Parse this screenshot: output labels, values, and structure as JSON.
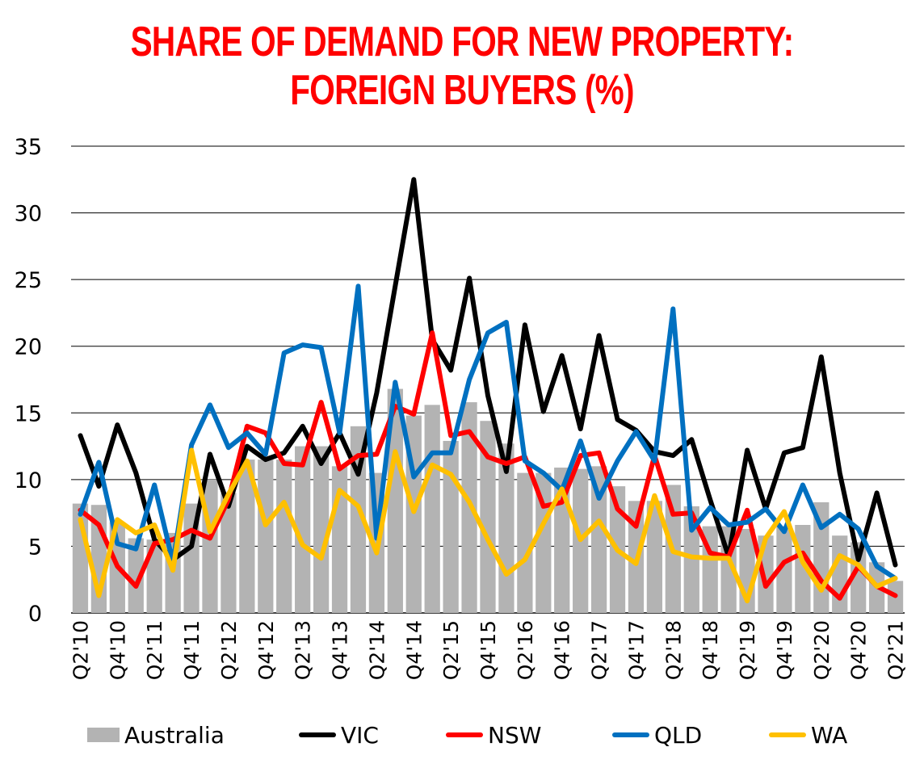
{
  "title_lines": [
    "SHARE OF DEMAND FOR NEW PROPERTY:",
    "FOREIGN BUYERS (%)"
  ],
  "colors": {
    "title": "#ff0000",
    "australia": "#b3b3b3",
    "vic": "#000000",
    "nsw": "#ff0000",
    "qld": "#0070c0",
    "wa": "#ffc000"
  },
  "legend": [
    {
      "name": "Australia",
      "kind": "bar",
      "color": "#b3b3b3"
    },
    {
      "name": "VIC",
      "kind": "line",
      "color": "#000000"
    },
    {
      "name": "NSW",
      "kind": "line",
      "color": "#ff0000"
    },
    {
      "name": "QLD",
      "kind": "line",
      "color": "#0070c0"
    },
    {
      "name": "WA",
      "kind": "line",
      "color": "#ffc000"
    }
  ],
  "chart_data": {
    "type": "bar+line",
    "title": "SHARE OF DEMAND FOR NEW PROPERTY: FOREIGN BUYERS (%)",
    "xlabel": "",
    "ylabel": "",
    "ylim": [
      0,
      35
    ],
    "yticks": [
      0,
      5,
      10,
      15,
      20,
      25,
      30,
      35
    ],
    "grid": true,
    "legend_position": "bottom",
    "categories": [
      "Q2'10",
      "Q3'10",
      "Q4'10",
      "Q1'11",
      "Q2'11",
      "Q3'11",
      "Q4'11",
      "Q1'12",
      "Q2'12",
      "Q3'12",
      "Q4'12",
      "Q1'13",
      "Q2'13",
      "Q3'13",
      "Q4'13",
      "Q1'14",
      "Q2'14",
      "Q3'14",
      "Q4'14",
      "Q1'15",
      "Q2'15",
      "Q3'15",
      "Q4'15",
      "Q1'16",
      "Q2'16",
      "Q3'16",
      "Q4'16",
      "Q1'17",
      "Q2'17",
      "Q3'17",
      "Q4'17",
      "Q1'18",
      "Q2'18",
      "Q3'18",
      "Q4'18",
      "Q1'19",
      "Q2'19",
      "Q3'19",
      "Q4'19",
      "Q1'20",
      "Q2'20",
      "Q3'20",
      "Q4'20",
      "Q1'21",
      "Q2'21"
    ],
    "tick_labels": [
      "Q2'10",
      "",
      "Q4'10",
      "",
      "Q2'11",
      "",
      "Q4'11",
      "",
      "Q2'12",
      "",
      "Q4'12",
      "",
      "Q2'13",
      "",
      "Q4'13",
      "",
      "Q2'14",
      "",
      "Q4'14",
      "",
      "Q2'15",
      "",
      "Q4'15",
      "",
      "Q2'16",
      "",
      "Q4'16",
      "",
      "Q2'17",
      "",
      "Q4'17",
      "",
      "Q2'18",
      "",
      "Q4'18",
      "",
      "Q2'19",
      "",
      "Q4'19",
      "",
      "Q2'20",
      "",
      "Q4'20",
      "",
      "Q2'21"
    ],
    "bars": {
      "name": "Australia",
      "values": [
        8.2,
        8.1,
        6.8,
        5.6,
        5.5,
        6.0,
        8.2,
        10.0,
        9.0,
        11.5,
        11.5,
        11.5,
        12.5,
        12.5,
        11.0,
        14.0,
        10.5,
        16.8,
        14.8,
        15.6,
        12.9,
        15.8,
        14.4,
        12.7,
        10.5,
        10.5,
        10.9,
        10.8,
        11.0,
        9.5,
        8.4,
        8.4,
        9.6,
        8.0,
        6.5,
        6.5,
        6.3,
        5.8,
        6.5,
        6.6,
        8.3,
        5.8,
        5.3,
        3.8,
        2.4
      ]
    },
    "series": [
      {
        "name": "VIC",
        "values": [
          13.3,
          9.5,
          14.1,
          10.5,
          5.5,
          4.0,
          5.0,
          11.9,
          8.0,
          12.5,
          11.5,
          12.0,
          14.0,
          11.2,
          13.5,
          10.4,
          16.5,
          24.5,
          32.5,
          20.5,
          18.2,
          25.1,
          16.3,
          10.6,
          21.6,
          15.1,
          19.3,
          13.8,
          20.8,
          14.5,
          13.7,
          12.1,
          11.8,
          13.0,
          8.5,
          4.2,
          12.2,
          7.8,
          12.0,
          12.4,
          19.2,
          10.5,
          4.0,
          9.0,
          3.6
        ]
      },
      {
        "name": "NSW",
        "values": [
          7.7,
          6.6,
          3.5,
          2.0,
          5.2,
          5.5,
          6.2,
          5.6,
          8.5,
          14.0,
          13.5,
          11.2,
          11.1,
          15.8,
          10.8,
          11.8,
          11.9,
          15.5,
          14.9,
          21.0,
          13.3,
          13.6,
          11.7,
          11.2,
          11.7,
          8.0,
          8.3,
          11.8,
          12.0,
          7.8,
          6.5,
          11.8,
          7.4,
          7.5,
          4.5,
          4.2,
          7.7,
          2.0,
          3.8,
          4.5,
          2.4,
          1.1,
          3.5,
          2.0,
          1.3
        ]
      },
      {
        "name": "QLD",
        "values": [
          7.4,
          11.3,
          5.2,
          4.8,
          9.6,
          3.8,
          12.6,
          15.6,
          12.4,
          13.5,
          11.9,
          19.5,
          20.1,
          19.9,
          13.5,
          24.5,
          5.6,
          17.3,
          10.2,
          12.0,
          12.0,
          17.5,
          21.0,
          21.8,
          11.4,
          10.5,
          9.2,
          12.9,
          8.6,
          11.4,
          13.6,
          11.4,
          22.8,
          6.2,
          7.9,
          6.6,
          6.8,
          7.8,
          6.1,
          9.6,
          6.4,
          7.4,
          6.3,
          3.5,
          2.6
        ]
      },
      {
        "name": "WA",
        "values": [
          7.0,
          1.3,
          7.0,
          6.0,
          6.6,
          3.2,
          12.2,
          6.1,
          8.9,
          11.4,
          6.6,
          8.3,
          5.1,
          4.1,
          9.2,
          8.0,
          4.5,
          12.1,
          7.6,
          11.1,
          10.4,
          8.3,
          5.5,
          2.9,
          4.0,
          6.7,
          9.3,
          5.5,
          6.9,
          4.7,
          3.7,
          8.8,
          4.6,
          4.2,
          4.1,
          4.1,
          0.9,
          5.6,
          7.6,
          3.8,
          1.7,
          4.3,
          3.6,
          2.0,
          2.6
        ]
      }
    ]
  }
}
